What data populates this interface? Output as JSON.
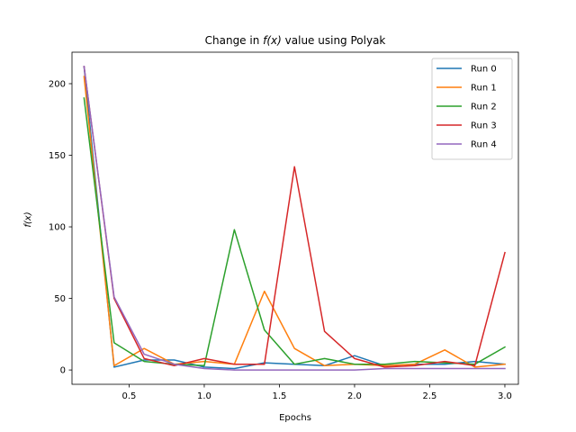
{
  "chart_data": {
    "type": "line",
    "title_prefix": "Change in ",
    "title_math": "f(x)",
    "title_suffix": " value using Polyak",
    "xlabel": "Epochs",
    "ylabel": "f(x)",
    "xlim": [
      0.12,
      3.09
    ],
    "ylim": [
      -10,
      222
    ],
    "xticks": [
      0.5,
      1.0,
      1.5,
      2.0,
      2.5,
      3.0
    ],
    "xtick_labels": [
      "0.5",
      "1.0",
      "1.5",
      "2.0",
      "2.5",
      "3.0"
    ],
    "yticks": [
      0,
      50,
      100,
      150,
      200
    ],
    "ytick_labels": [
      "0",
      "50",
      "100",
      "150",
      "200"
    ],
    "grid": false,
    "legend_position": "top-right",
    "x": [
      0.2,
      0.4,
      0.6,
      0.8,
      1.0,
      1.2,
      1.4,
      1.6,
      1.8,
      2.0,
      2.2,
      2.4,
      2.6,
      2.8,
      3.0
    ],
    "series": [
      {
        "name": "Run 0",
        "color": "#1f77b4",
        "values": [
          212,
          2,
          7,
          7,
          2,
          1,
          5,
          4,
          3,
          10,
          3,
          4,
          4,
          6,
          4
        ]
      },
      {
        "name": "Run 1",
        "color": "#ff7f0e",
        "values": [
          205,
          3,
          15,
          4,
          6,
          4,
          55,
          15,
          3,
          4,
          3,
          4,
          14,
          2,
          4
        ]
      },
      {
        "name": "Run 2",
        "color": "#2ca02c",
        "values": [
          190,
          19,
          6,
          4,
          3,
          98,
          28,
          4,
          8,
          4,
          4,
          6,
          5,
          4,
          16
        ]
      },
      {
        "name": "Run 3",
        "color": "#d62728",
        "values": [
          212,
          50,
          8,
          3,
          8,
          4,
          4,
          142,
          27,
          8,
          2,
          3,
          6,
          3,
          82
        ]
      },
      {
        "name": "Run 4",
        "color": "#9467bd",
        "values": [
          212,
          51,
          11,
          4,
          1,
          0,
          0,
          0,
          0,
          0,
          1,
          1,
          1,
          1,
          1
        ]
      }
    ]
  }
}
